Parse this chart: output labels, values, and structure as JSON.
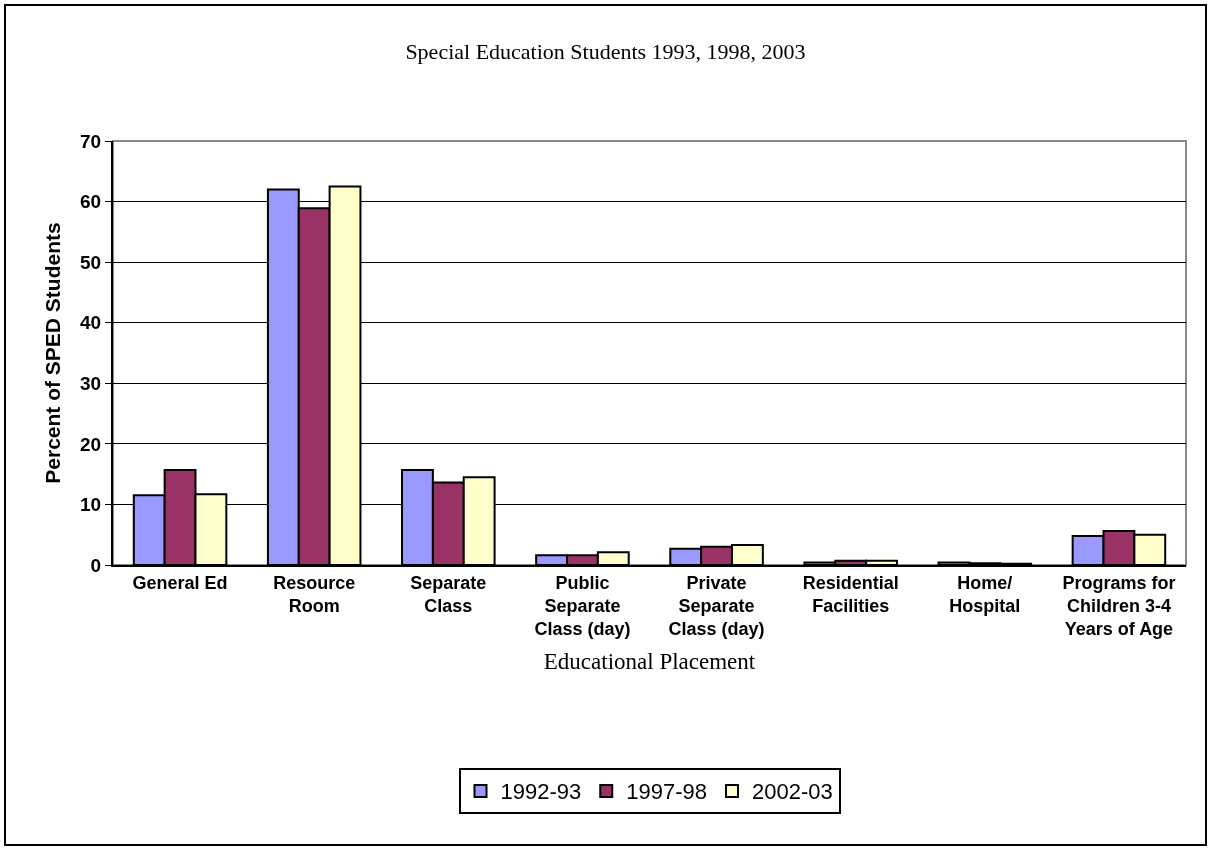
{
  "chart_data": {
    "type": "bar",
    "title": "Special Education Students 1993, 1998, 2003",
    "xlabel": "Educational Placement",
    "ylabel": "Percent of SPED Students",
    "categories": [
      "General Ed",
      "Resource Room",
      "Separate Class",
      "Public Separate Class (day)",
      "Private Separate Class (day)",
      "Residential Facilities",
      "Home/ Hospital",
      "Programs for Children 3-4 Years of Age"
    ],
    "series": [
      {
        "name": "1992-93",
        "color": "#9999ff",
        "values": [
          11.5,
          62,
          15.7,
          1.6,
          2.7,
          0.4,
          0.4,
          4.8
        ]
      },
      {
        "name": "1997-98",
        "color": "#993366",
        "values": [
          15.7,
          58.9,
          13.6,
          1.6,
          3.0,
          0.7,
          0.3,
          5.6
        ]
      },
      {
        "name": "2002-03",
        "color": "#ffffcc",
        "values": [
          11.7,
          62.5,
          14.5,
          2.1,
          3.3,
          0.7,
          0.2,
          5.0
        ]
      }
    ],
    "ylim": [
      0,
      70
    ],
    "yticks": [
      0,
      10,
      20,
      30,
      40,
      50,
      60,
      70
    ],
    "grid": "y",
    "legend": "bottom"
  }
}
